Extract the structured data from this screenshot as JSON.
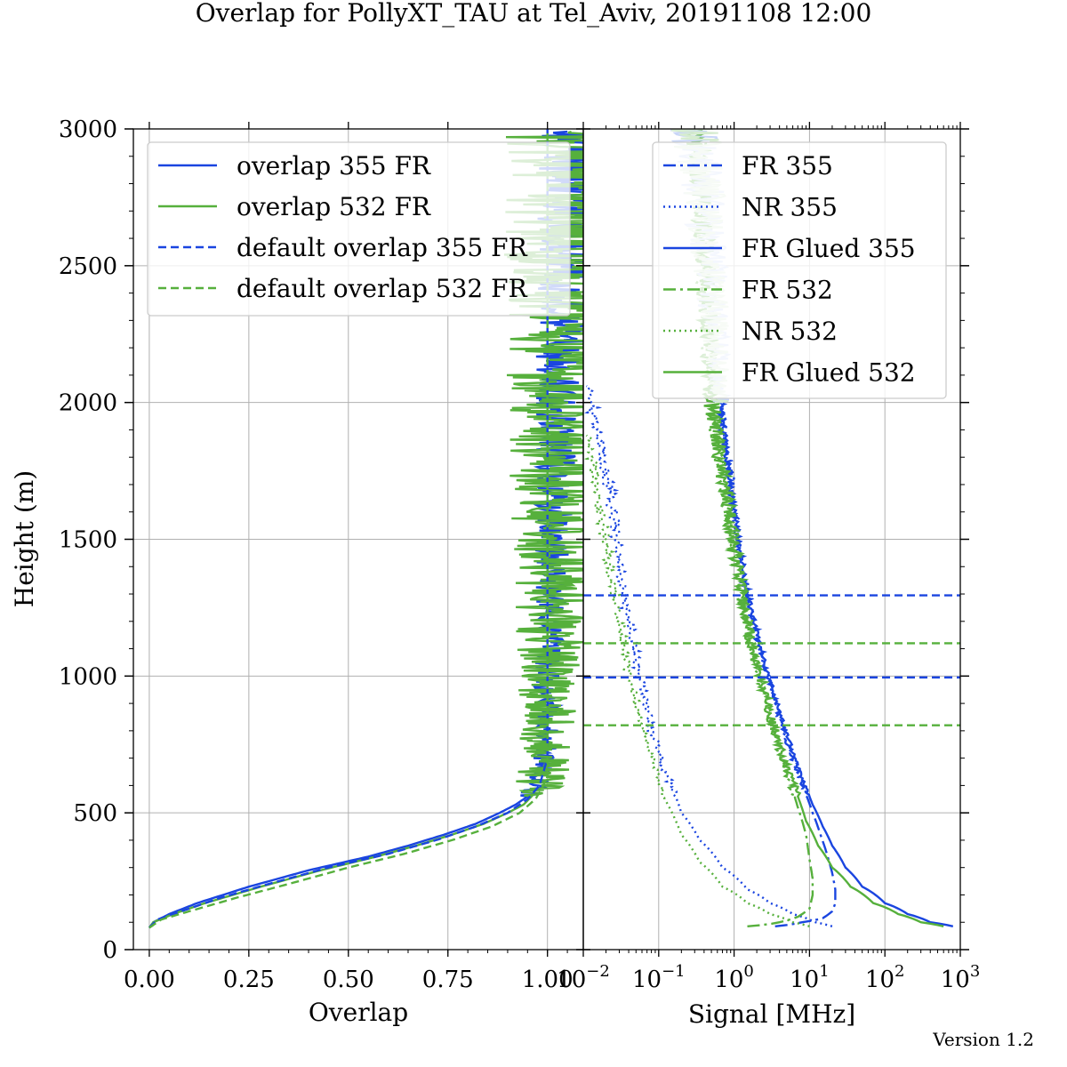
{
  "title": "Overlap for PollyXT_TAU at Tel_Aviv, 20191108 12:00",
  "version": "Version 1.2",
  "colors": {
    "c355": "#1a45e0",
    "c532": "#56b03c"
  },
  "chart_data": [
    {
      "type": "line",
      "panel": "left",
      "xlabel": "Overlap",
      "ylabel": "Height (m)",
      "xlim": [
        -0.04,
        1.09
      ],
      "ylim": [
        0,
        3000
      ],
      "xticks": [
        0,
        0.25,
        0.5,
        0.75,
        1.0
      ],
      "xtick_labels": [
        "0.00",
        "0.25",
        "0.50",
        "0.75",
        "1.00"
      ],
      "yticks": [
        0,
        500,
        1000,
        1500,
        2000,
        2500,
        3000
      ],
      "ytick_labels": [
        "0",
        "500",
        "1000",
        "1500",
        "2000",
        "2500",
        "3000"
      ],
      "grid": true,
      "legend_position": "upper-right",
      "series": [
        {
          "name": "overlap 355 FR",
          "color": "#1a45e0",
          "style": "solid",
          "points": [
            [
              0.0,
              80
            ],
            [
              0.01,
              100
            ],
            [
              0.05,
              130
            ],
            [
              0.12,
              170
            ],
            [
              0.25,
              230
            ],
            [
              0.4,
              290
            ],
            [
              0.55,
              340
            ],
            [
              0.65,
              380
            ],
            [
              0.74,
              420
            ],
            [
              0.82,
              460
            ],
            [
              0.88,
              500
            ],
            [
              0.92,
              530
            ],
            [
              0.95,
              560
            ],
            [
              0.97,
              590
            ],
            [
              0.98,
              630
            ],
            [
              0.99,
              700
            ],
            [
              1.0,
              800
            ],
            [
              1.0,
              900
            ],
            [
              1.0,
              1000
            ],
            [
              1.01,
              1200
            ],
            [
              1.01,
              1400
            ],
            [
              1.02,
              1600
            ],
            [
              1.02,
              1800
            ],
            [
              1.02,
              2000
            ],
            [
              1.03,
              2200
            ],
            [
              1.04,
              2400
            ],
            [
              1.04,
              2600
            ],
            [
              1.05,
              2800
            ],
            [
              1.05,
              2990
            ]
          ],
          "noise": 0.025
        },
        {
          "name": "overlap 532 FR",
          "color": "#56b03c",
          "style": "solid",
          "points": [
            [
              0.0,
              80
            ],
            [
              0.01,
              100
            ],
            [
              0.06,
              130
            ],
            [
              0.14,
              170
            ],
            [
              0.28,
              230
            ],
            [
              0.43,
              290
            ],
            [
              0.57,
              340
            ],
            [
              0.67,
              380
            ],
            [
              0.76,
              420
            ],
            [
              0.84,
              460
            ],
            [
              0.9,
              500
            ],
            [
              0.94,
              530
            ],
            [
              0.96,
              560
            ],
            [
              0.98,
              600
            ],
            [
              0.99,
              650
            ],
            [
              1.0,
              700
            ],
            [
              1.0,
              800
            ],
            [
              1.0,
              900
            ],
            [
              1.01,
              1000
            ],
            [
              1.01,
              1200
            ],
            [
              1.02,
              1400
            ],
            [
              1.02,
              1600
            ],
            [
              1.02,
              1800
            ],
            [
              1.03,
              2000
            ],
            [
              1.04,
              2200
            ],
            [
              1.05,
              2400
            ],
            [
              1.05,
              2600
            ],
            [
              1.06,
              2800
            ],
            [
              1.06,
              2990
            ]
          ],
          "noise": 0.06
        },
        {
          "name": "default overlap 355 FR",
          "color": "#1a45e0",
          "style": "dashed",
          "points": [
            [
              0.0,
              80
            ],
            [
              0.02,
              110
            ],
            [
              0.08,
              140
            ],
            [
              0.18,
              190
            ],
            [
              0.3,
              240
            ],
            [
              0.45,
              300
            ],
            [
              0.6,
              350
            ],
            [
              0.72,
              400
            ],
            [
              0.82,
              450
            ],
            [
              0.9,
              500
            ],
            [
              0.95,
              550
            ],
            [
              0.98,
              600
            ],
            [
              0.99,
              650
            ],
            [
              1.0,
              700
            ],
            [
              1.0,
              3000
            ]
          ],
          "noise": 0
        },
        {
          "name": "default overlap 532 FR",
          "color": "#56b03c",
          "style": "dashed",
          "points": [
            [
              0.0,
              80
            ],
            [
              0.03,
              110
            ],
            [
              0.1,
              140
            ],
            [
              0.22,
              190
            ],
            [
              0.35,
              240
            ],
            [
              0.5,
              300
            ],
            [
              0.64,
              350
            ],
            [
              0.76,
              400
            ],
            [
              0.86,
              450
            ],
            [
              0.93,
              500
            ],
            [
              0.97,
              550
            ],
            [
              0.99,
              600
            ],
            [
              1.0,
              650
            ],
            [
              1.0,
              3000
            ]
          ],
          "noise": 0
        }
      ]
    },
    {
      "type": "line",
      "panel": "right",
      "xlabel": "Signal [MHz]",
      "xscale": "log",
      "xlim": [
        0.01,
        1000
      ],
      "ylim": [
        0,
        3000
      ],
      "xticks": [
        0.01,
        0.1,
        1,
        10,
        100,
        1000
      ],
      "xtick_labels": [
        {
          "base": "10",
          "exp": "−2"
        },
        {
          "base": "10",
          "exp": "−1"
        },
        {
          "base": "10",
          "exp": "0"
        },
        {
          "base": "10",
          "exp": "1"
        },
        {
          "base": "10",
          "exp": "2"
        },
        {
          "base": "10",
          "exp": "3"
        }
      ],
      "grid": true,
      "legend_position": "upper-right",
      "hlines": [
        {
          "y": 1295,
          "color": "#1a45e0",
          "style": "dashed"
        },
        {
          "y": 995,
          "color": "#1a45e0",
          "style": "dashed"
        },
        {
          "y": 1120,
          "color": "#56b03c",
          "style": "dashed"
        },
        {
          "y": 820,
          "color": "#56b03c",
          "style": "dashed"
        }
      ],
      "series": [
        {
          "name": "FR 355",
          "color": "#1a45e0",
          "style": "dashdot",
          "points": [
            [
              3.5,
              85
            ],
            [
              8,
              100
            ],
            [
              15,
              115
            ],
            [
              20,
              140
            ],
            [
              22,
              170
            ],
            [
              22,
              220
            ],
            [
              20,
              280
            ],
            [
              17,
              350
            ],
            [
              14,
              420
            ],
            [
              11,
              500
            ],
            [
              8,
              600
            ],
            [
              6,
              700
            ],
            [
              4.5,
              800
            ],
            [
              3.5,
              900
            ],
            [
              2.8,
              1000
            ],
            [
              2.2,
              1100
            ],
            [
              1.8,
              1200
            ],
            [
              1.5,
              1300
            ],
            [
              1.2,
              1450
            ],
            [
              1.0,
              1600
            ],
            [
              0.8,
              1800
            ],
            [
              0.65,
              2000
            ]
          ],
          "noise": 0.03
        },
        {
          "name": "NR 355",
          "color": "#1a45e0",
          "style": "dotted",
          "points": [
            [
              20,
              85
            ],
            [
              12,
              100
            ],
            [
              6,
              130
            ],
            [
              3,
              170
            ],
            [
              1.5,
              220
            ],
            [
              0.7,
              300
            ],
            [
              0.35,
              400
            ],
            [
              0.2,
              500
            ],
            [
              0.12,
              650
            ],
            [
              0.08,
              800
            ],
            [
              0.055,
              1000
            ],
            [
              0.04,
              1200
            ],
            [
              0.03,
              1400
            ],
            [
              0.025,
              1600
            ],
            [
              0.018,
              1800
            ],
            [
              0.013,
              2000
            ],
            [
              0.011,
              2060
            ]
          ],
          "noise": 0.04
        },
        {
          "name": "FR Glued 355",
          "color": "#1a45e0",
          "style": "solid",
          "points": [
            [
              800,
              85
            ],
            [
              400,
              100
            ],
            [
              200,
              130
            ],
            [
              100,
              170
            ],
            [
              50,
              230
            ],
            [
              30,
              300
            ],
            [
              20,
              380
            ],
            [
              15,
              450
            ],
            [
              11,
              530
            ],
            [
              8,
              620
            ],
            [
              6,
              720
            ],
            [
              4.5,
              820
            ],
            [
              3.5,
              920
            ],
            [
              2.8,
              1000
            ],
            [
              2.2,
              1100
            ],
            [
              1.8,
              1200
            ],
            [
              1.5,
              1300
            ],
            [
              1.2,
              1450
            ],
            [
              1.0,
              1600
            ],
            [
              0.8,
              1800
            ],
            [
              0.65,
              2000
            ]
          ],
          "noise": 0.02
        },
        {
          "name": "FR 532",
          "color": "#56b03c",
          "style": "dashdot",
          "points": [
            [
              1.5,
              85
            ],
            [
              4,
              100
            ],
            [
              7,
              120
            ],
            [
              10,
              150
            ],
            [
              11,
              200
            ],
            [
              11,
              260
            ],
            [
              10,
              330
            ],
            [
              9,
              420
            ],
            [
              7,
              520
            ],
            [
              5,
              640
            ],
            [
              3.8,
              750
            ],
            [
              3,
              860
            ],
            [
              2.4,
              960
            ],
            [
              1.9,
              1060
            ],
            [
              1.6,
              1160
            ],
            [
              1.3,
              1280
            ],
            [
              1.1,
              1400
            ],
            [
              0.9,
              1550
            ],
            [
              0.75,
              1700
            ],
            [
              0.6,
              1850
            ],
            [
              0.5,
              2000
            ],
            [
              0.45,
              2300
            ],
            [
              0.4,
              2600
            ],
            [
              0.35,
              2850
            ],
            [
              0.3,
              3000
            ]
          ],
          "noise": 0.05
        },
        {
          "name": "NR 532",
          "color": "#56b03c",
          "style": "dotted",
          "points": [
            [
              10,
              85
            ],
            [
              6,
              100
            ],
            [
              3,
              130
            ],
            [
              1.5,
              170
            ],
            [
              0.7,
              230
            ],
            [
              0.35,
              320
            ],
            [
              0.2,
              420
            ],
            [
              0.12,
              550
            ],
            [
              0.08,
              700
            ],
            [
              0.055,
              850
            ],
            [
              0.04,
              1000
            ],
            [
              0.03,
              1200
            ],
            [
              0.022,
              1400
            ],
            [
              0.017,
              1600
            ],
            [
              0.013,
              1800
            ],
            [
              0.011,
              1880
            ]
          ],
          "noise": 0.04
        },
        {
          "name": "FR Glued 532",
          "color": "#56b03c",
          "style": "solid",
          "points": [
            [
              600,
              85
            ],
            [
              300,
              100
            ],
            [
              150,
              130
            ],
            [
              70,
              170
            ],
            [
              35,
              230
            ],
            [
              20,
              300
            ],
            [
              13,
              380
            ],
            [
              9,
              470
            ],
            [
              7,
              560
            ],
            [
              5,
              660
            ],
            [
              3.8,
              760
            ],
            [
              3,
              860
            ],
            [
              2.4,
              960
            ],
            [
              1.9,
              1060
            ],
            [
              1.6,
              1160
            ],
            [
              1.3,
              1280
            ],
            [
              1.1,
              1400
            ],
            [
              0.9,
              1550
            ],
            [
              0.75,
              1700
            ],
            [
              0.6,
              1850
            ],
            [
              0.5,
              2000
            ],
            [
              0.45,
              2300
            ],
            [
              0.4,
              2600
            ],
            [
              0.35,
              2850
            ],
            [
              0.3,
              3000
            ]
          ],
          "noise": 0.05
        }
      ]
    }
  ]
}
